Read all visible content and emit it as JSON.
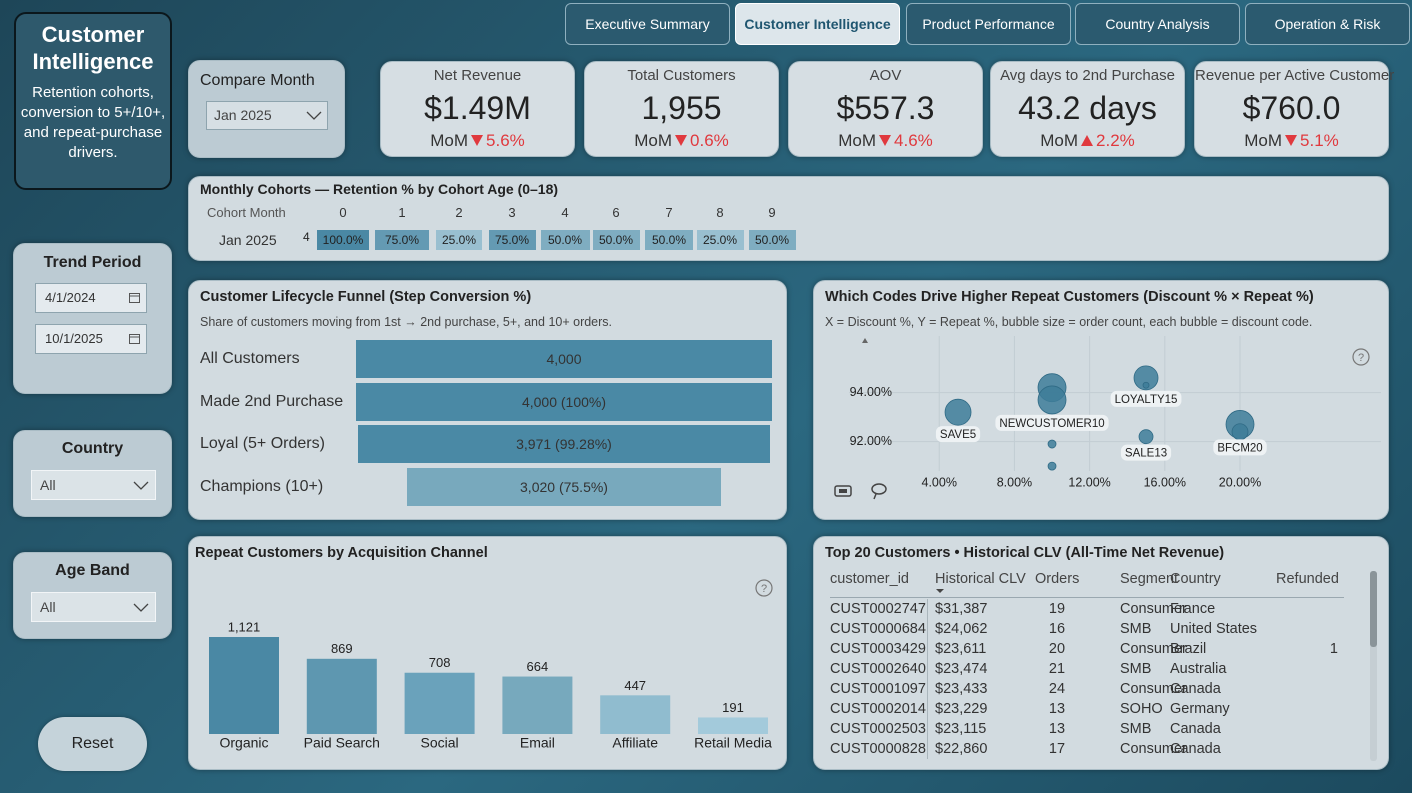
{
  "header": {
    "title": "Customer Intelligence",
    "description": "Retention cohorts, conversion to 5+/10+, and repeat-purchase drivers."
  },
  "tabs": [
    {
      "label": "Executive Summary",
      "active": false
    },
    {
      "label": "Customer Intelligence",
      "active": true
    },
    {
      "label": "Product Performance",
      "active": false
    },
    {
      "label": "Country Analysis",
      "active": false
    },
    {
      "label": "Operation & Risk",
      "active": false
    }
  ],
  "filters": {
    "compare_month": {
      "label": "Compare Month",
      "value": "Jan 2025"
    },
    "trend_period": {
      "label": "Trend Period",
      "start": "4/1/2024",
      "end": "10/1/2025"
    },
    "country": {
      "label": "Country",
      "value": "All"
    },
    "age_band": {
      "label": "Age Band",
      "value": "All"
    },
    "reset": "Reset"
  },
  "kpis": [
    {
      "label": "Net Revenue",
      "value": "$1.49M",
      "mom_label": "MoM",
      "mom": "5.6%",
      "direction": "down"
    },
    {
      "label": "Total Customers",
      "value": "1,955",
      "mom_label": "MoM",
      "mom": "0.6%",
      "direction": "down"
    },
    {
      "label": "AOV",
      "value": "$557.3",
      "mom_label": "MoM",
      "mom": "4.6%",
      "direction": "down"
    },
    {
      "label": "Avg days to 2nd Purchase",
      "value": "43.2 days",
      "mom_label": "MoM",
      "mom": "2.2%",
      "direction": "up"
    },
    {
      "label": "Revenue per Active Customer",
      "value": "$760.0",
      "mom_label": "MoM",
      "mom": "5.1%",
      "direction": "down"
    }
  ],
  "help_icon": "?",
  "cohorts": {
    "title": "Monthly Cohorts — Retention % by Cohort Age (0–18)",
    "header_label": "Cohort Month",
    "ages": [
      0,
      1,
      2,
      3,
      4,
      6,
      7,
      8,
      9
    ],
    "rows": [
      {
        "month": "Jan 2025",
        "size": 4,
        "values": [
          100,
          75,
          25,
          75,
          50,
          50,
          50,
          25,
          50
        ],
        "value_labels": [
          "100.0%",
          "75.0%",
          "25.0%",
          "75.0%",
          "50.0%",
          "50.0%",
          "50.0%",
          "25.0%",
          "50.0%"
        ]
      }
    ]
  },
  "funnel": {
    "type": "bar",
    "orientation": "horizontal",
    "title": "Customer Lifecycle Funnel (Step Conversion %)",
    "subtitle": "Share of customers moving from 1st → 2nd purchase, 5+, and 10+ orders.",
    "categories": [
      "All Customers",
      "Made 2nd Purchase",
      "Loyal (5+ Orders)",
      "Champions (10+)"
    ],
    "values": [
      4000,
      4000,
      3971,
      3020
    ],
    "value_labels": [
      "4,000",
      "4,000 (100%)",
      "3,971 (99.28%)",
      "3,020 (75.5%)"
    ],
    "colors": [
      "#4a89a5",
      "#4a89a5",
      "#4a89a5",
      "#78a9bd"
    ]
  },
  "discount_scatter": {
    "type": "scatter",
    "title": "Which Codes Drive Higher Repeat Customers (Discount % × Repeat %)",
    "subtitle": "X = Discount %, Y = Repeat %, bubble size = order count, each bubble = discount code.",
    "x": [
      5.0,
      10.0,
      10.0,
      10.0,
      10.0,
      15.0,
      15.0,
      15.0,
      20.0,
      20.0
    ],
    "y": [
      93.2,
      94.2,
      93.7,
      91.9,
      91.0,
      94.6,
      94.3,
      92.2,
      92.7,
      92.4
    ],
    "sizes": [
      169,
      196,
      196,
      16,
      16,
      144,
      9,
      49,
      196,
      64
    ],
    "labels": [
      "SAVE5",
      null,
      "NEWCUSTOMER10",
      null,
      null,
      "LOYALTY15",
      null,
      "SALE13",
      "BFCM20",
      null
    ],
    "color": "#3e7d99",
    "xlim": [
      -0.8,
      27.5
    ],
    "ylim": [
      90.8,
      95.9
    ],
    "xticks": [
      {
        "value": 4,
        "label": "4.00%"
      },
      {
        "value": 8,
        "label": "8.00%"
      },
      {
        "value": 12,
        "label": "12.00%"
      },
      {
        "value": 16,
        "label": "16.00%"
      },
      {
        "value": 20,
        "label": "20.00%"
      }
    ],
    "yticks": [
      {
        "value": 92,
        "label": "92.00%"
      },
      {
        "value": 94,
        "label": "94.00%"
      }
    ],
    "grid": true
  },
  "channel_chart": {
    "type": "bar",
    "title": "Repeat Customers by Acquisition Channel",
    "categories": [
      "Organic",
      "Paid Search",
      "Social",
      "Email",
      "Affiliate",
      "Retail Media"
    ],
    "values": [
      1121,
      869,
      708,
      664,
      447,
      191
    ],
    "value_labels": [
      "1,121",
      "869",
      "708",
      "664",
      "447",
      "191"
    ],
    "colors": [
      "#4a88a4",
      "#5e97b0",
      "#6aa2bb",
      "#77a9bd",
      "#90bccf",
      "#a3cadb"
    ]
  },
  "top_customers": {
    "title": "Top 20 Customers • Historical CLV (All-Time Net Revenue)",
    "columns": [
      "customer_id",
      "Historical CLV",
      "Orders",
      "Segment",
      "Country",
      "Refunded"
    ],
    "sort_column": 1,
    "sort_direction": "desc",
    "rows": [
      [
        "CUST0002747",
        "$31,387",
        19,
        "Consumer",
        "France",
        null
      ],
      [
        "CUST0000684",
        "$24,062",
        16,
        "SMB",
        "United States",
        null
      ],
      [
        "CUST0003429",
        "$23,611",
        20,
        "Consumer",
        "Brazil",
        1
      ],
      [
        "CUST0002640",
        "$23,474",
        21,
        "SMB",
        "Australia",
        null
      ],
      [
        "CUST0001097",
        "$23,433",
        24,
        "Consumer",
        "Canada",
        null
      ],
      [
        "CUST0002014",
        "$23,229",
        13,
        "SOHO",
        "Germany",
        null
      ],
      [
        "CUST0002503",
        "$23,115",
        13,
        "SMB",
        "Canada",
        null
      ],
      [
        "CUST0000828",
        "$22,860",
        17,
        "Consumer",
        "Canada",
        null
      ]
    ]
  }
}
